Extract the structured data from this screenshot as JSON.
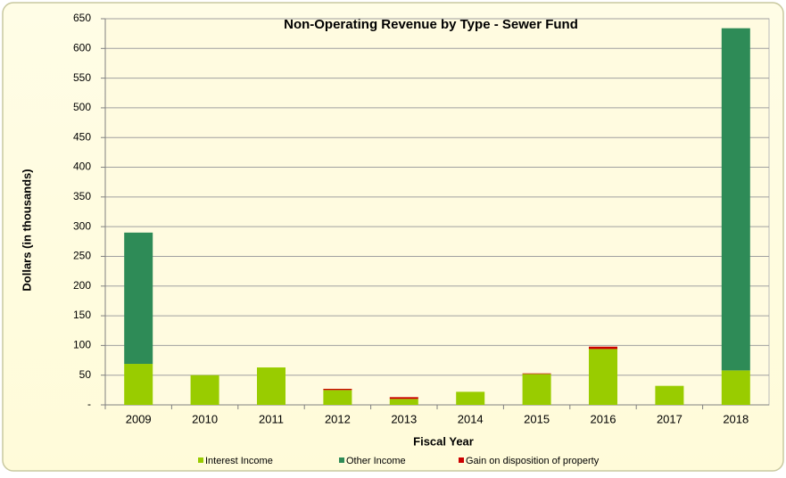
{
  "chart_data": {
    "type": "stacked_bar",
    "title": "Non-Operating Revenue by Type - Sewer Fund",
    "x_label": "Fiscal Year",
    "y_label": "Dollars (in thousands)",
    "categories": [
      "2009",
      "2010",
      "2011",
      "2012",
      "2013",
      "2014",
      "2015",
      "2016",
      "2017",
      "2018"
    ],
    "series": [
      {
        "name": "Interest Income",
        "color": "#99cc00",
        "values": [
          69,
          50,
          63,
          25,
          10,
          22,
          52,
          94,
          32,
          58
        ]
      },
      {
        "name": "Other Income",
        "color": "#2e8b57",
        "values": [
          221,
          0,
          0,
          0,
          0,
          0,
          0,
          0,
          0,
          576
        ]
      },
      {
        "name": "Gain on disposition of property",
        "color": "#cc0000",
        "values": [
          0,
          0,
          0,
          2,
          3,
          0,
          1,
          4,
          0,
          0
        ]
      }
    ],
    "ylim": [
      0,
      650
    ],
    "yticks": [
      {
        "value": 0,
        "label": "-"
      },
      50,
      100,
      150,
      200,
      250,
      300,
      350,
      400,
      450,
      500,
      550,
      600,
      650
    ],
    "grid": true,
    "legend": "bottom"
  }
}
